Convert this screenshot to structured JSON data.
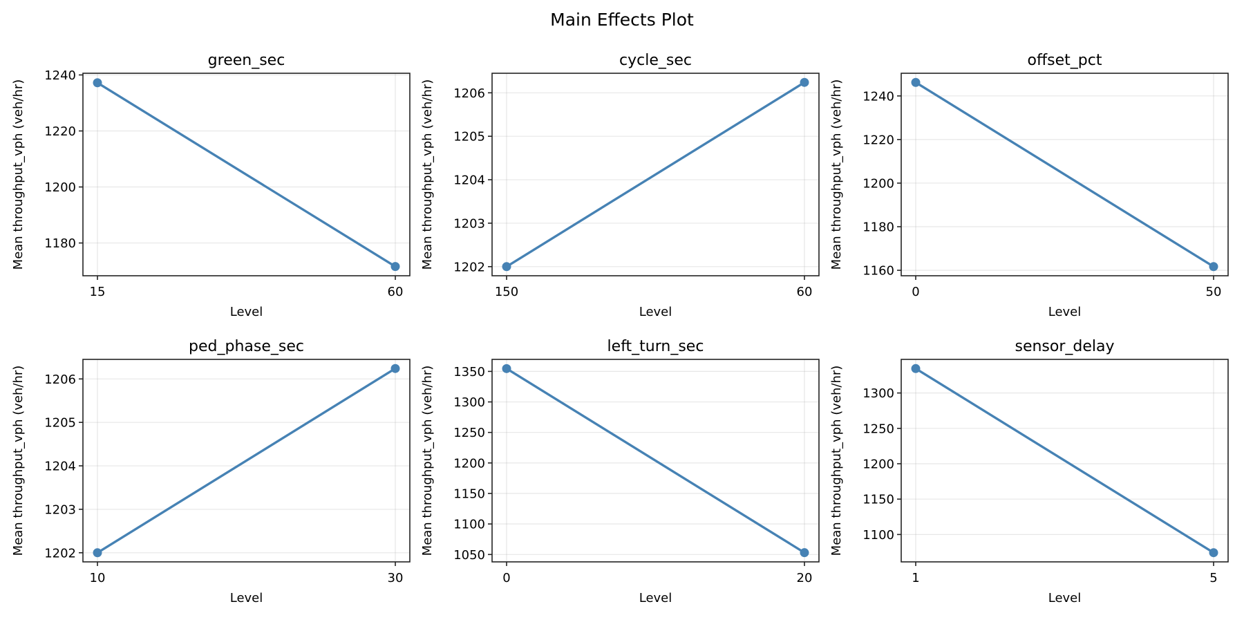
{
  "figure": {
    "title": "Main Effects Plot",
    "line_color": "#4682B4"
  },
  "chart_data": [
    {
      "type": "line",
      "title": "green_sec",
      "xlabel": "Level",
      "ylabel": "Mean throughput_vph (veh/hr)",
      "categories": [
        "15",
        "60"
      ],
      "values": [
        1237.2,
        1171.6
      ],
      "yticks": [
        1180,
        1200,
        1220,
        1240
      ],
      "ylim": [
        1168.3,
        1240.6
      ],
      "grid": true
    },
    {
      "type": "line",
      "title": "cycle_sec",
      "xlabel": "Level",
      "ylabel": "Mean throughput_vph (veh/hr)",
      "categories": [
        "150",
        "60"
      ],
      "values": [
        1202.0,
        1206.24
      ],
      "yticks": [
        1202,
        1203,
        1204,
        1205,
        1206
      ],
      "ylim": [
        1201.79,
        1206.45
      ],
      "grid": true
    },
    {
      "type": "line",
      "title": "offset_pct",
      "xlabel": "Level",
      "ylabel": "Mean throughput_vph (veh/hr)",
      "categories": [
        "0",
        "50"
      ],
      "values": [
        1246.2,
        1161.7
      ],
      "yticks": [
        1160,
        1180,
        1200,
        1220,
        1240
      ],
      "ylim": [
        1157.5,
        1250.4
      ],
      "grid": true
    },
    {
      "type": "line",
      "title": "ped_phase_sec",
      "xlabel": "Level",
      "ylabel": "Mean throughput_vph (veh/hr)",
      "categories": [
        "10",
        "30"
      ],
      "values": [
        1202.0,
        1206.24
      ],
      "yticks": [
        1202,
        1203,
        1204,
        1205,
        1206
      ],
      "ylim": [
        1201.79,
        1206.45
      ],
      "grid": true
    },
    {
      "type": "line",
      "title": "left_turn_sec",
      "xlabel": "Level",
      "ylabel": "Mean throughput_vph (veh/hr)",
      "categories": [
        "0",
        "20"
      ],
      "values": [
        1354.6,
        1053.0
      ],
      "yticks": [
        1050,
        1100,
        1150,
        1200,
        1250,
        1300,
        1350
      ],
      "ylim": [
        1037.9,
        1369.7
      ],
      "grid": true
    },
    {
      "type": "line",
      "title": "sensor_delay",
      "xlabel": "Level",
      "ylabel": "Mean throughput_vph (veh/hr)",
      "categories": [
        "1",
        "5"
      ],
      "values": [
        1334.5,
        1074.3
      ],
      "yticks": [
        1100,
        1150,
        1200,
        1250,
        1300
      ],
      "ylim": [
        1061.3,
        1347.5
      ],
      "grid": true
    }
  ]
}
